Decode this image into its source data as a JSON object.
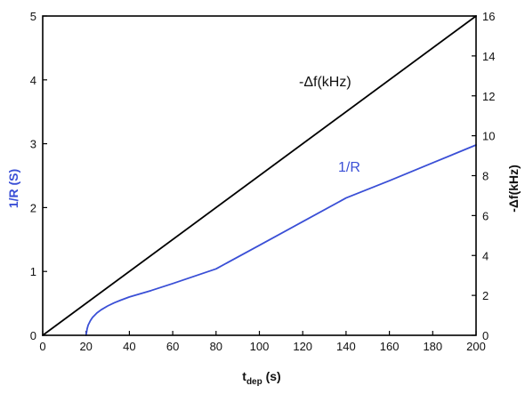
{
  "chart_data": {
    "type": "line",
    "xlabel": "t",
    "xlabel_sub": "dep",
    "xlabel_unit": " (s)",
    "ylabel_left": "1/R (S)",
    "ylabel_right": "-Δf(kHz)",
    "xlim": [
      0,
      200
    ],
    "ylim_left": [
      0,
      5
    ],
    "ylim_right": [
      0,
      16
    ],
    "x_ticks": [
      "0",
      "20",
      "40",
      "60",
      "80",
      "100",
      "120",
      "140",
      "160",
      "180",
      "200"
    ],
    "y_left_ticks": [
      "0",
      "1",
      "2",
      "3",
      "4",
      "5"
    ],
    "y_right_ticks": [
      "0",
      "2",
      "4",
      "6",
      "8",
      "10",
      "12",
      "14",
      "16"
    ],
    "grid": false,
    "legend": "none",
    "series": [
      {
        "name": "-Δf(kHz)",
        "axis": "right",
        "color": "#000000",
        "x": [
          0,
          200
        ],
        "y": [
          0,
          16
        ]
      },
      {
        "name": "1/R",
        "axis": "left",
        "color": "#3a4fd6",
        "x": [
          20,
          20.5,
          21,
          22,
          23,
          25,
          27,
          30,
          33,
          36,
          40,
          50,
          60,
          80,
          100,
          120,
          140,
          160,
          180,
          200
        ],
        "y": [
          0,
          0.1,
          0.16,
          0.23,
          0.28,
          0.35,
          0.4,
          0.46,
          0.51,
          0.55,
          0.6,
          0.7,
          0.81,
          1.04,
          1.41,
          1.78,
          2.15,
          2.42,
          2.7,
          2.98
        ]
      }
    ],
    "annotations": [
      {
        "text": "-Δf(kHz)",
        "series": 0
      },
      {
        "text": "1/R",
        "series": 1
      }
    ]
  }
}
